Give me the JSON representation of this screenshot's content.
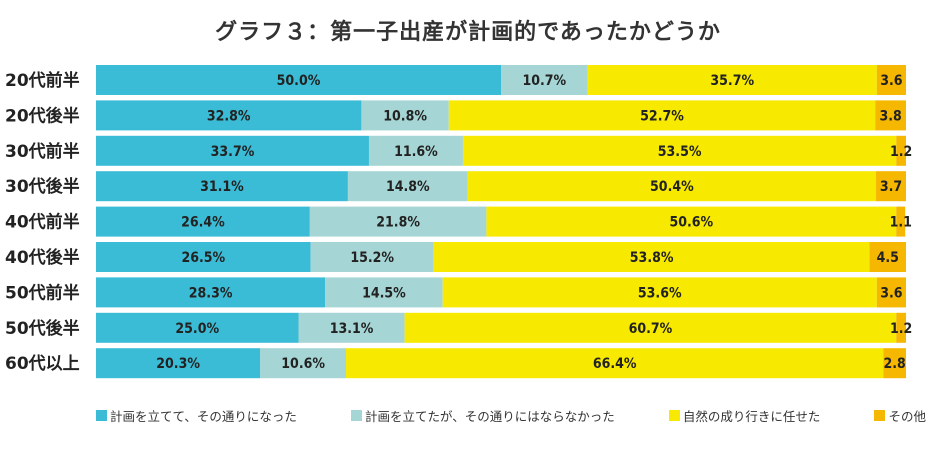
{
  "chart_data": {
    "type": "bar",
    "orientation": "horizontal",
    "stacked": true,
    "title": "グラフ３：第一子出産が計画的であったかどうか",
    "categories": [
      "20代前半",
      "20代後半",
      "30代前半",
      "30代後半",
      "40代前半",
      "40代後半",
      "50代前半",
      "50代後半",
      "60代以上"
    ],
    "series": [
      {
        "name": "計画を立てて、その通りになった",
        "color": "#3bbcd6",
        "values": [
          50.0,
          32.8,
          33.7,
          31.1,
          26.4,
          26.5,
          28.3,
          25.0,
          20.3
        ],
        "labels": [
          "50.0%",
          "32.8%",
          "33.7%",
          "31.1%",
          "26.4%",
          "26.5%",
          "28.3%",
          "25.0%",
          "20.3%"
        ]
      },
      {
        "name": "計画を立てたが、その通りにはならなかった",
        "color": "#a6d5d5",
        "values": [
          10.7,
          10.8,
          11.6,
          14.8,
          21.8,
          15.2,
          14.5,
          13.1,
          10.6
        ],
        "labels": [
          "10.7%",
          "10.8%",
          "11.6%",
          "14.8%",
          "21.8%",
          "15.2%",
          "14.5%",
          "13.1%",
          "10.6%"
        ]
      },
      {
        "name": "自然の成り行きに任せた",
        "color": "#f7ea00",
        "values": [
          35.7,
          52.7,
          53.5,
          50.4,
          50.6,
          53.8,
          53.6,
          60.7,
          66.4
        ],
        "labels": [
          "35.7%",
          "52.7%",
          "53.5%",
          "50.4%",
          "50.6%",
          "53.8%",
          "53.6%",
          "60.7%",
          "66.4%"
        ]
      },
      {
        "name": "その他",
        "color": "#f5b700",
        "values": [
          3.6,
          3.8,
          1.2,
          3.7,
          1.1,
          4.5,
          3.6,
          1.2,
          2.8
        ],
        "labels": [
          "3.6",
          "3.8",
          "1.2",
          "3.7",
          "1.1",
          "4.5",
          "3.6",
          "1.2",
          "2.8"
        ]
      }
    ],
    "xlim": [
      0,
      100
    ],
    "grid": false,
    "legend_position": "bottom"
  }
}
